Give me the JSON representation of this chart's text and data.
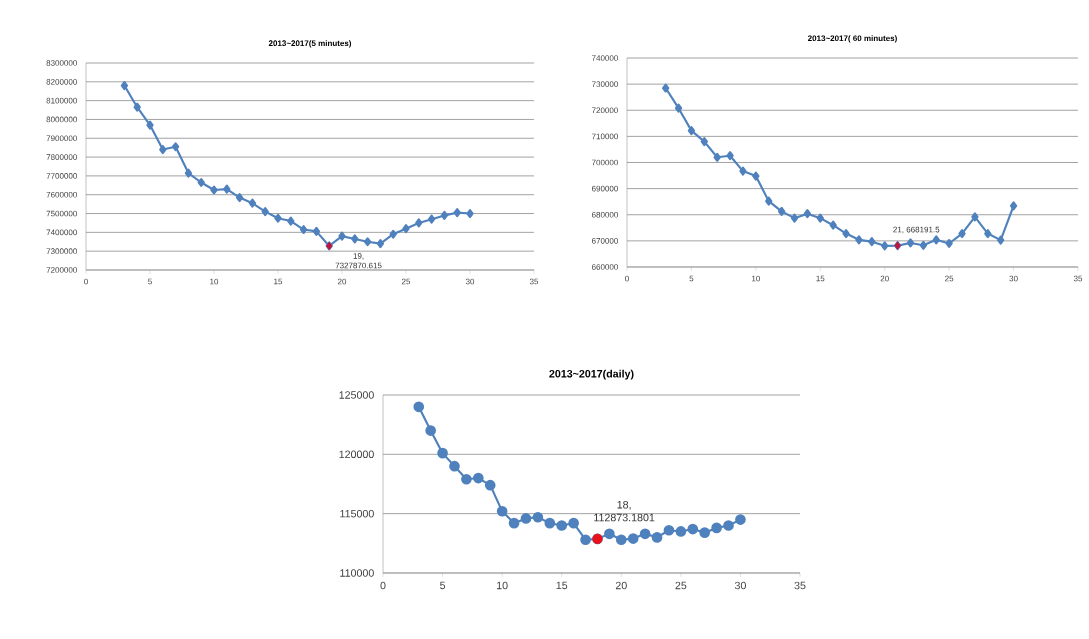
{
  "chart_data": [
    {
      "type": "line",
      "title": "2013~2017(5 minutes)",
      "x": [
        3,
        4,
        5,
        6,
        7,
        8,
        9,
        10,
        11,
        12,
        13,
        14,
        15,
        16,
        17,
        18,
        19,
        20,
        21,
        22,
        23,
        24,
        25,
        26,
        27,
        28,
        29,
        30
      ],
      "series": [
        {
          "color": "#4f81bd",
          "values": [
            8180000,
            8065000,
            7970000,
            7840000,
            7855000,
            7715000,
            7665000,
            7625000,
            7630000,
            7585000,
            7555000,
            7510000,
            7475000,
            7460000,
            7415000,
            7405000,
            7327870.615,
            7380000,
            7365000,
            7350000,
            7340000,
            7390000,
            7420000,
            7450000,
            7470000,
            7490000,
            7505000,
            7500000
          ]
        },
        {
          "type": "scatter",
          "color": "#c0143c",
          "x": [
            19
          ],
          "values": [
            7327870.615
          ]
        }
      ],
      "annotations": [
        {
          "text": "19, 7327870.615",
          "x": 19,
          "y": 7327870.615
        }
      ],
      "xlim": [
        0,
        35
      ],
      "ylim": [
        7200000,
        8300000
      ],
      "xticks": [
        0,
        5,
        10,
        15,
        20,
        25,
        30,
        35
      ],
      "yticks": [
        7200000,
        7300000,
        7400000,
        7500000,
        7600000,
        7700000,
        7800000,
        7900000,
        8000000,
        8100000,
        8200000,
        8300000
      ],
      "grid": "y",
      "marker": "diamond",
      "line_style": "solid"
    },
    {
      "type": "line",
      "title": "2013~2017( 60 minutes)",
      "x": [
        3,
        4,
        5,
        6,
        7,
        8,
        9,
        10,
        11,
        12,
        13,
        14,
        15,
        16,
        17,
        18,
        19,
        20,
        21,
        22,
        23,
        24,
        25,
        26,
        27,
        28,
        29,
        30
      ],
      "series": [
        {
          "color": "#4f81bd",
          "values": [
            728500,
            720800,
            712200,
            708000,
            702000,
            702600,
            696700,
            694800,
            685200,
            681300,
            678700,
            680400,
            678700,
            676000,
            672800,
            670400,
            669700,
            668100,
            668191.5,
            669200,
            668300,
            670400,
            669000,
            672800,
            679200,
            672800,
            670300,
            683400
          ]
        },
        {
          "type": "scatter",
          "color": "#c0143c",
          "x": [
            21
          ],
          "values": [
            668191.5
          ]
        }
      ],
      "annotations": [
        {
          "text": "21, 668191.5",
          "x": 21,
          "y": 668191.5
        }
      ],
      "xlim": [
        0,
        35
      ],
      "ylim": [
        660000,
        740000
      ],
      "xticks": [
        0,
        5,
        10,
        15,
        20,
        25,
        30,
        35
      ],
      "yticks": [
        660000,
        670000,
        680000,
        690000,
        700000,
        710000,
        720000,
        730000,
        740000
      ],
      "grid": "y",
      "marker": "diamond",
      "line_style": "solid"
    },
    {
      "type": "line",
      "title": "2013~2017(daily)",
      "x": [
        3,
        4,
        5,
        6,
        7,
        8,
        9,
        10,
        11,
        12,
        13,
        14,
        15,
        16,
        17,
        18,
        19,
        20,
        21,
        22,
        23,
        24,
        25,
        26,
        27,
        28,
        29,
        30
      ],
      "series": [
        {
          "color": "#4f81bd",
          "values": [
            124000,
            122000,
            120100,
            119000,
            117900,
            118000,
            117400,
            115200,
            114200,
            114600,
            114700,
            114200,
            114000,
            114200,
            112800,
            112873.1801,
            113300,
            112800,
            112900,
            113300,
            113000,
            113600,
            113500,
            113700,
            113400,
            113800,
            114000,
            114500
          ]
        },
        {
          "type": "scatter",
          "color": "#e8101a",
          "x": [
            18
          ],
          "values": [
            112873.1801
          ]
        }
      ],
      "annotations": [
        {
          "text": "18, 112873.1801",
          "x": 18,
          "y": 112873.1801
        }
      ],
      "xlim": [
        0,
        35
      ],
      "ylim": [
        110000,
        125000
      ],
      "xticks": [
        0,
        5,
        10,
        15,
        20,
        25,
        30,
        35
      ],
      "yticks": [
        110000,
        115000,
        120000,
        125000
      ],
      "grid": "y",
      "marker": "circle",
      "line_style": "solid"
    }
  ]
}
